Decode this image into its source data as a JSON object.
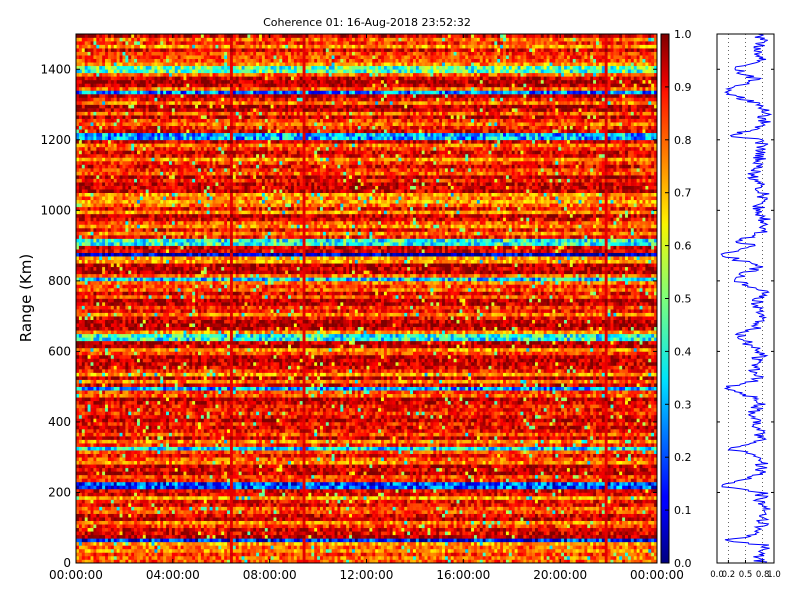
{
  "chart_data": [
    {
      "type": "heatmap",
      "title": "Coherence 01: 16-Aug-2018 23:52:32",
      "xlabel": "",
      "ylabel": "Range (Km)",
      "x_range": [
        "00:00:00",
        "00:00:00 (+24h)"
      ],
      "ylim": [
        0,
        1500
      ],
      "x_tick_labels": [
        "00:00:00",
        "04:00:00",
        "08:00:00",
        "12:00:00",
        "16:00:00",
        "20:00:00",
        "00:00:00"
      ],
      "y_tick_labels": [
        "0",
        "200",
        "400",
        "600",
        "800",
        "1000",
        "1200",
        "1400"
      ],
      "y_ticks": [
        0,
        200,
        400,
        600,
        800,
        1000,
        1200,
        1400
      ],
      "colormap": "jet",
      "grid": false,
      "dominant_value_range": [
        0.7,
        0.95
      ],
      "low_coherence_rows_km": [
        {
          "range": 65,
          "value": 0.15
        },
        {
          "range": 220,
          "value": 0.2
        },
        {
          "range": 325,
          "value": 0.35
        },
        {
          "range": 495,
          "value": 0.3
        },
        {
          "range": 640,
          "value": 0.4
        },
        {
          "range": 805,
          "value": 0.35
        },
        {
          "range": 875,
          "value": 0.05
        },
        {
          "range": 910,
          "value": 0.4
        },
        {
          "range": 1210,
          "value": 0.3
        },
        {
          "range": 1335,
          "value": 0.25
        },
        {
          "range": 1400,
          "value": 0.45
        }
      ],
      "high_coherence_rows_km": [
        90,
        130,
        260,
        355,
        465,
        580,
        620,
        680,
        740,
        840,
        975,
        1060,
        1265,
        1290,
        1370,
        1455
      ],
      "vertical_streak_time_h": [
        9.3,
        6.3,
        21.8
      ],
      "colorbar": {
        "vmin": 0.0,
        "vmax": 1.0,
        "tick_labels": [
          "0.0",
          "0.1",
          "0.2",
          "0.3",
          "0.4",
          "0.5",
          "0.6",
          "0.7",
          "0.8",
          "0.9",
          "1.0"
        ]
      }
    },
    {
      "type": "line",
      "title": "",
      "xlabel": "",
      "ylabel": "",
      "xlim": [
        0,
        1
      ],
      "ylim": [
        0,
        1500
      ],
      "orientation": "vertical-profile",
      "x_tick_labels": [
        "0.0",
        "0.2",
        "0.5",
        "0.8",
        "1.0"
      ],
      "series": [
        {
          "color": "#0000ff",
          "range_km": [
            0,
            25,
            50,
            65,
            80,
            110,
            140,
            175,
            200,
            220,
            245,
            280,
            300,
            325,
            350,
            380,
            400,
            430,
            460,
            495,
            520,
            560,
            600,
            640,
            670,
            700,
            740,
            770,
            805,
            840,
            875,
            900,
            910,
            940,
            970,
            1000,
            1050,
            1100,
            1150,
            1200,
            1210,
            1240,
            1270,
            1300,
            1335,
            1370,
            1400,
            1430,
            1460,
            1500
          ],
          "coherence": [
            0.75,
            0.7,
            0.85,
            0.1,
            0.7,
            0.8,
            0.85,
            0.75,
            0.8,
            0.05,
            0.7,
            0.8,
            0.75,
            0.2,
            0.8,
            0.7,
            0.75,
            0.65,
            0.8,
            0.15,
            0.7,
            0.65,
            0.8,
            0.35,
            0.7,
            0.75,
            0.7,
            0.8,
            0.3,
            0.75,
            0.05,
            0.7,
            0.3,
            0.8,
            0.85,
            0.7,
            0.8,
            0.65,
            0.75,
            0.8,
            0.2,
            0.8,
            0.85,
            0.75,
            0.15,
            0.7,
            0.3,
            0.8,
            0.75,
            0.8
          ]
        }
      ]
    }
  ],
  "colors": {
    "axes": "#000000",
    "line": "#0000ff",
    "background": "#ffffff"
  }
}
